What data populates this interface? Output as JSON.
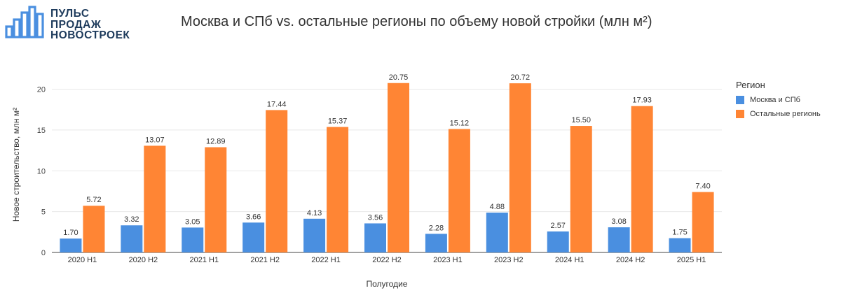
{
  "logo": {
    "lines": [
      "ПУЛЬС",
      "ПРОДАЖ",
      "НОВОСТРОЕК"
    ],
    "color": "#1e3b5c"
  },
  "chart_data": {
    "type": "bar",
    "title": "Москва и СПб vs. остальные регионы по объему новой стройки (млн м²)",
    "xlabel": "Полугодие",
    "ylabel": "Новое строительство, млн м²",
    "categories": [
      "2020 H1",
      "2020 H2",
      "2021 H1",
      "2021 H2",
      "2022 H1",
      "2022 H2",
      "2023 H1",
      "2023 H2",
      "2024 H1",
      "2024 H2",
      "2025 H1"
    ],
    "series": [
      {
        "name": "Москва и СПб",
        "color": "#4a8fe0",
        "values": [
          1.7,
          3.32,
          3.05,
          3.66,
          4.13,
          3.56,
          2.28,
          4.88,
          2.57,
          3.08,
          1.75
        ],
        "labels": [
          "1.70",
          "3.32",
          "3.05",
          "3.66",
          "4.13",
          "3.56",
          "2.28",
          "4.88",
          "2.57",
          "3.08",
          "1.75"
        ]
      },
      {
        "name": "Остальные регионь",
        "color": "#ff8534",
        "values": [
          5.72,
          13.07,
          12.89,
          17.44,
          15.37,
          20.75,
          15.12,
          20.72,
          15.5,
          17.93,
          7.4
        ],
        "labels": [
          "5.72",
          "13.07",
          "12.89",
          "17.44",
          "15.37",
          "20.75",
          "15.12",
          "20.72",
          "15.50",
          "17.93",
          "7.40"
        ]
      }
    ],
    "ylim": [
      0,
      21.5
    ],
    "yticks": [
      "0",
      "5",
      "10",
      "15",
      "20"
    ],
    "grid": true,
    "legend": {
      "title": "Регион",
      "placement": "right"
    }
  }
}
